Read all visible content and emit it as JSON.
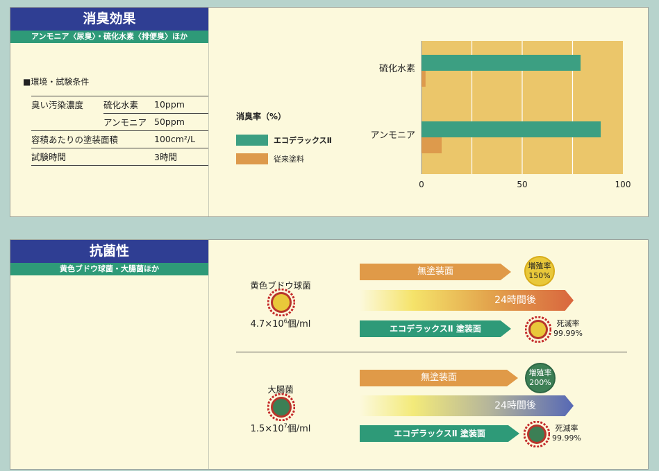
{
  "deodor": {
    "title": "消臭効果",
    "subtitle": "アンモニア〈尿臭〉・硫化水素〈排便臭〉ほか",
    "conditions_heading": "■環境・試験条件",
    "conditions": {
      "odor_label": "臭い汚染濃度",
      "gas1_label": "硫化水素",
      "gas1_value": "10ppm",
      "gas2_label": "アンモニア",
      "gas2_value": "50ppm",
      "area_label": "容積あたりの塗装面積",
      "area_value": "100cm²/L",
      "time_label": "試験時間",
      "time_value": "3時間"
    },
    "legend_title": "消臭率（%）",
    "legend": [
      {
        "label": "エコデラックスⅡ",
        "color": "#3c9f82"
      },
      {
        "label": "従来塗料",
        "color": "#dd9a4c"
      }
    ]
  },
  "chart_data": {
    "type": "bar",
    "orientation": "horizontal",
    "title": "消臭率（%）",
    "categories": [
      "硫化水素",
      "アンモニア"
    ],
    "series": [
      {
        "name": "エコデラックスⅡ",
        "values": [
          79,
          89
        ],
        "color": "#3c9f82"
      },
      {
        "name": "従来塗料",
        "values": [
          2,
          10
        ],
        "color": "#dd9a4c"
      }
    ],
    "xlim": [
      0,
      100
    ],
    "xticks": [
      "0",
      "50",
      "100"
    ],
    "grid": true,
    "background": "#ebc66a"
  },
  "antibac": {
    "title": "抗菌性",
    "subtitle": "黄色ブドウ球菌・大腸菌ほか",
    "bacteria": [
      {
        "name": "黄色ブドウ球菌",
        "count_base": "4.7×10",
        "count_exp": "6",
        "count_unit": "個/ml",
        "uncoated": "無塗装面",
        "after": "24時間後",
        "coated": "エコデラックスⅡ 塗装面",
        "growth_label": "増殖率",
        "growth_value": "150%",
        "kill_label": "死滅率",
        "kill_value": "99.99%",
        "color": "#e9c83a"
      },
      {
        "name": "大腸菌",
        "count_base": "1.5×10",
        "count_exp": "7",
        "count_unit": "個/ml",
        "uncoated": "無塗装面",
        "after": "24時間後",
        "coated": "エコデラックスⅡ 塗装面",
        "growth_label": "増殖率",
        "growth_value": "200%",
        "kill_label": "死滅率",
        "kill_value": "99.99%",
        "color": "#3c7f55"
      }
    ]
  }
}
